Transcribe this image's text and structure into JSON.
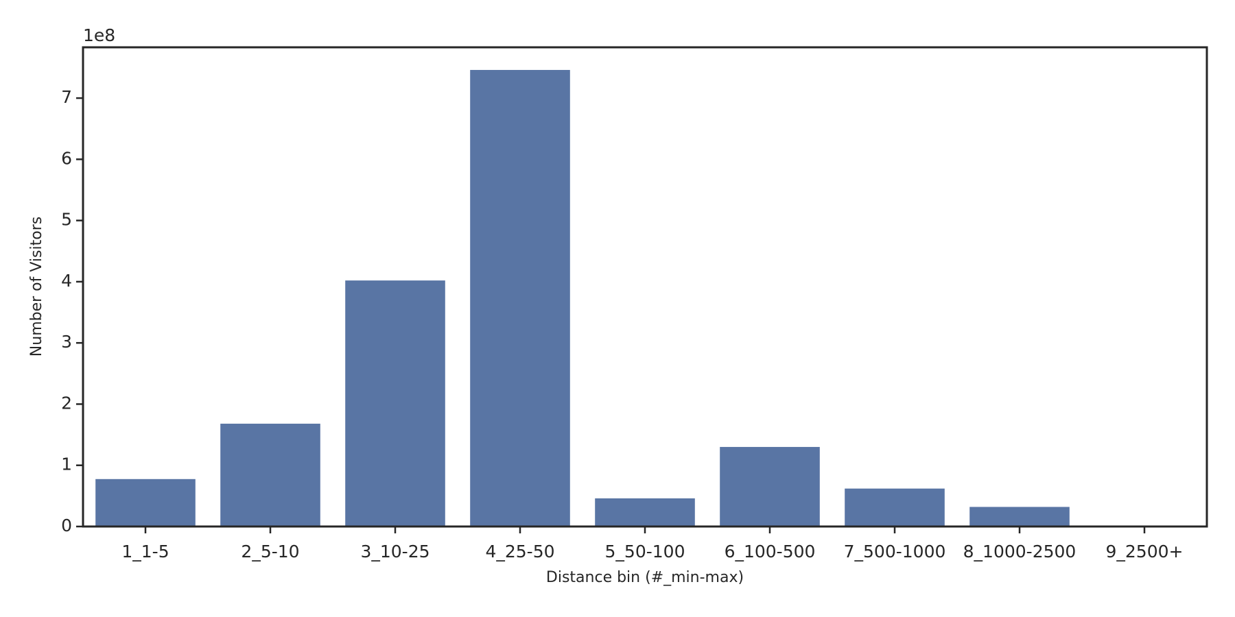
{
  "chart_data": {
    "type": "bar",
    "x_label": "Distance bin (#_min-max)",
    "y_label": "Number of Visitors",
    "y_offset_label": "1e8",
    "categories": [
      "1_1-5",
      "2_5-10",
      "3_10-25",
      "4_25-50",
      "5_50-100",
      "6_100-500",
      "7_500-1000",
      "8_1000-2500",
      "9_2500+"
    ],
    "values": [
      0.775,
      1.68,
      4.02,
      7.46,
      0.46,
      1.3,
      0.62,
      0.32,
      0.005
    ],
    "color": "#5975a4",
    "ylim": [
      0,
      7.83
    ],
    "yticks": [
      0,
      1,
      2,
      3,
      4,
      5,
      6,
      7
    ],
    "grid": false
  }
}
